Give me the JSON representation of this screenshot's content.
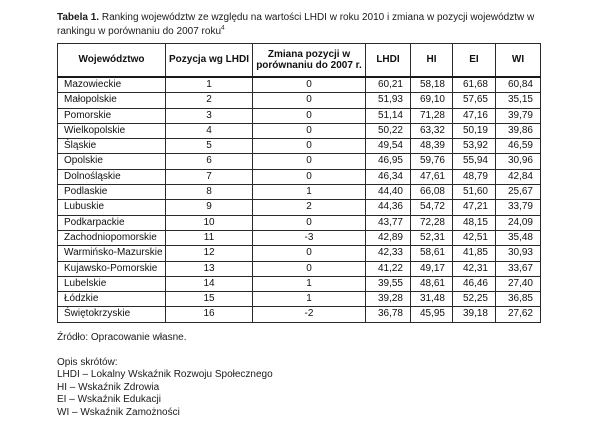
{
  "title": {
    "label": "Tabela 1.",
    "text": " Ranking województw ze względu na wartości LHDI w roku 2010 i zmiana w pozycji województw w rankingu w porównaniu do 2007 roku",
    "footnote": "4"
  },
  "table": {
    "headers": [
      "Województwo",
      "Pozycja wg LHDI",
      "Zmiana pozycji w porównaniu do 2007 r.",
      "LHDI",
      "HI",
      "EI",
      "WI"
    ],
    "rows": [
      [
        "Mazowieckie",
        "1",
        "0",
        "60,21",
        "58,18",
        "61,68",
        "60,84"
      ],
      [
        "Małopolskie",
        "2",
        "0",
        "51,93",
        "69,10",
        "57,65",
        "35,15"
      ],
      [
        "Pomorskie",
        "3",
        "0",
        "51,14",
        "71,28",
        "47,16",
        "39,79"
      ],
      [
        "Wielkopolskie",
        "4",
        "0",
        "50,22",
        "63,32",
        "50,19",
        "39,86"
      ],
      [
        "Śląskie",
        "5",
        "0",
        "49,54",
        "48,39",
        "53,92",
        "46,59"
      ],
      [
        "Opolskie",
        "6",
        "0",
        "46,95",
        "59,76",
        "55,94",
        "30,96"
      ],
      [
        "Dolnośląskie",
        "7",
        "0",
        "46,34",
        "47,61",
        "48,79",
        "42,84"
      ],
      [
        "Podlaskie",
        "8",
        "1",
        "44,40",
        "66,08",
        "51,60",
        "25,67"
      ],
      [
        "Lubuskie",
        "9",
        "2",
        "44,36",
        "54,72",
        "47,21",
        "33,79"
      ],
      [
        "Podkarpackie",
        "10",
        "0",
        "43,77",
        "72,28",
        "48,15",
        "24,09"
      ],
      [
        "Zachodniopomorskie",
        "11",
        "-3",
        "42,89",
        "52,31",
        "42,51",
        "35,48"
      ],
      [
        "Warmińsko-Mazurskie",
        "12",
        "0",
        "42,33",
        "58,61",
        "41,85",
        "30,93"
      ],
      [
        "Kujawsko-Pomorskie",
        "13",
        "0",
        "41,22",
        "49,17",
        "42,31",
        "33,67"
      ],
      [
        "Lubelskie",
        "14",
        "1",
        "39,55",
        "48,61",
        "46,46",
        "27,40"
      ],
      [
        "Łódzkie",
        "15",
        "1",
        "39,28",
        "31,48",
        "52,25",
        "36,85"
      ],
      [
        "Świętokrzyskie",
        "16",
        "-2",
        "36,78",
        "45,95",
        "39,18",
        "27,62"
      ]
    ]
  },
  "source": "Źródło: Opracowanie własne.",
  "abbreviations": {
    "heading": "Opis skrótów:",
    "items": [
      "LHDI – Lokalny Wskaźnik Rozwoju Społecznego",
      "HI – Wskaźnik Zdrowia",
      "EI – Wskaźnik Edukacji",
      "WI – Wskaźnik Zamożności"
    ]
  }
}
